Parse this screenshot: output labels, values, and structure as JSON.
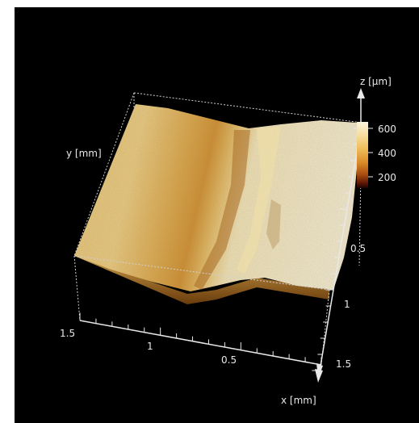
{
  "chart_data": {
    "type": "surface3d",
    "title": "",
    "xlabel": "x [mm]",
    "ylabel": "y [mm]",
    "zlabel": "z [µm]",
    "x_ticks": [
      "1.5",
      "1",
      "0.5"
    ],
    "y_ticks": [
      "0.5",
      "1",
      "1.5"
    ],
    "colorbar": {
      "ticks": [
        "600",
        "400",
        "200"
      ],
      "colors": [
        "#fbf4dc",
        "#f6dda0",
        "#eebf5c",
        "#d98a28",
        "#a74a10",
        "#5a1504",
        "#1a0200"
      ]
    },
    "surface_colors": {
      "base": "#e8c77a",
      "groove": "#d18d2c",
      "plateau": "#efe5c2",
      "shadow": "#8c5a1a"
    },
    "box_style": "dotted",
    "background": "#000000"
  }
}
